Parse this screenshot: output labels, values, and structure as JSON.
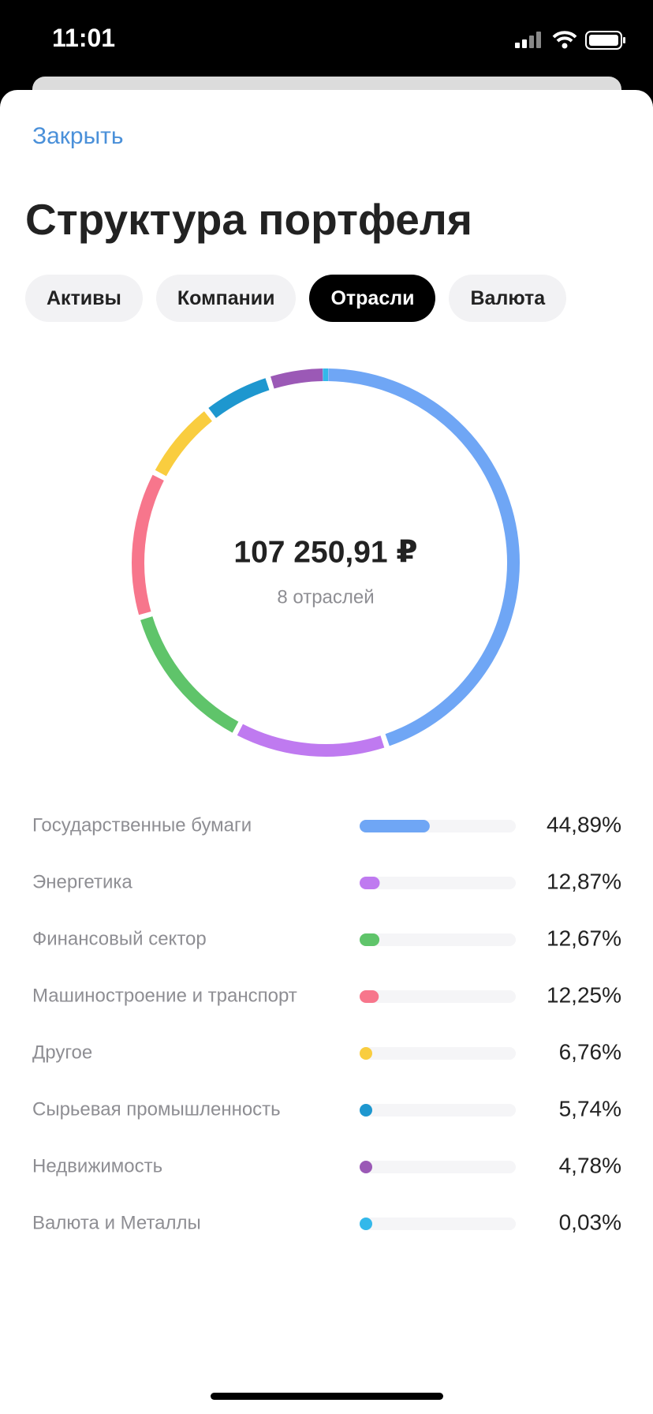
{
  "status_time": "11:01",
  "close": "Закрыть",
  "title": "Структура портфеля",
  "tabs": [
    "Активы",
    "Компании",
    "Отрасли",
    "Валюта"
  ],
  "active_tab": 2,
  "chart_data": {
    "type": "donut",
    "center_value": "107 250,91 ₽",
    "center_label": "8 отраслей",
    "categories": [
      "Государственные бумаги",
      "Энергетика",
      "Финансовый сектор",
      "Машиностроение и транспорт",
      "Другое",
      "Сырьевая промышленность",
      "Недвижимость",
      "Валюта и Металлы"
    ],
    "values": [
      44.89,
      12.87,
      12.67,
      12.25,
      6.76,
      5.74,
      4.78,
      0.03
    ],
    "value_labels": [
      "44,89%",
      "12,87%",
      "12,67%",
      "12,25%",
      "6,76%",
      "5,74%",
      "4,78%",
      "0,03%"
    ],
    "colors": [
      "#6fa6f5",
      "#bf7af0",
      "#5fc46a",
      "#f7768c",
      "#f9cd3f",
      "#1e97cf",
      "#9b59b6",
      "#33b8ea"
    ]
  }
}
